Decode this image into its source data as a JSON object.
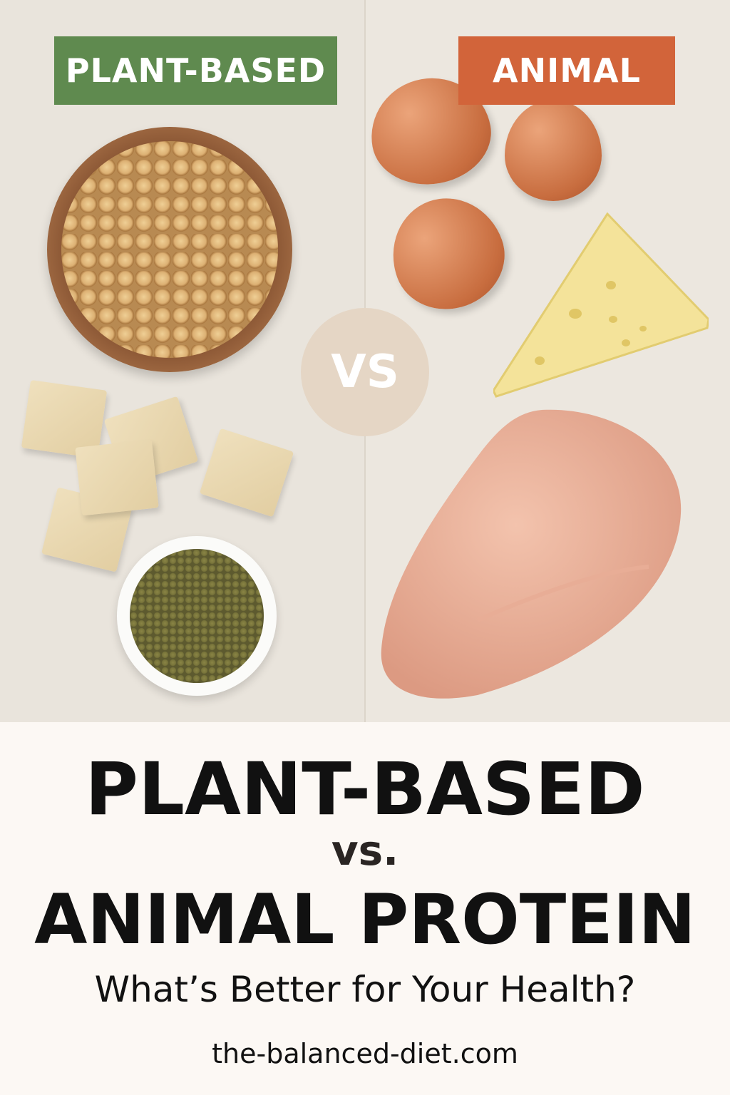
{
  "labels": {
    "plant": "PLANT-BASED",
    "animal": "ANIMAL",
    "vs": "VS"
  },
  "colors": {
    "plant_accent": "#5f8a4f",
    "animal_accent": "#d2643a",
    "vs_circle": "#e5d6c5",
    "footer_bg": "#fcf8f4"
  },
  "title": {
    "line1": "PLANT-BASED",
    "line2": "vs.",
    "line3": "ANIMAL PROTEIN",
    "subtitle": "What’s Better for Your Health?",
    "website": "the-balanced-diet.com"
  }
}
